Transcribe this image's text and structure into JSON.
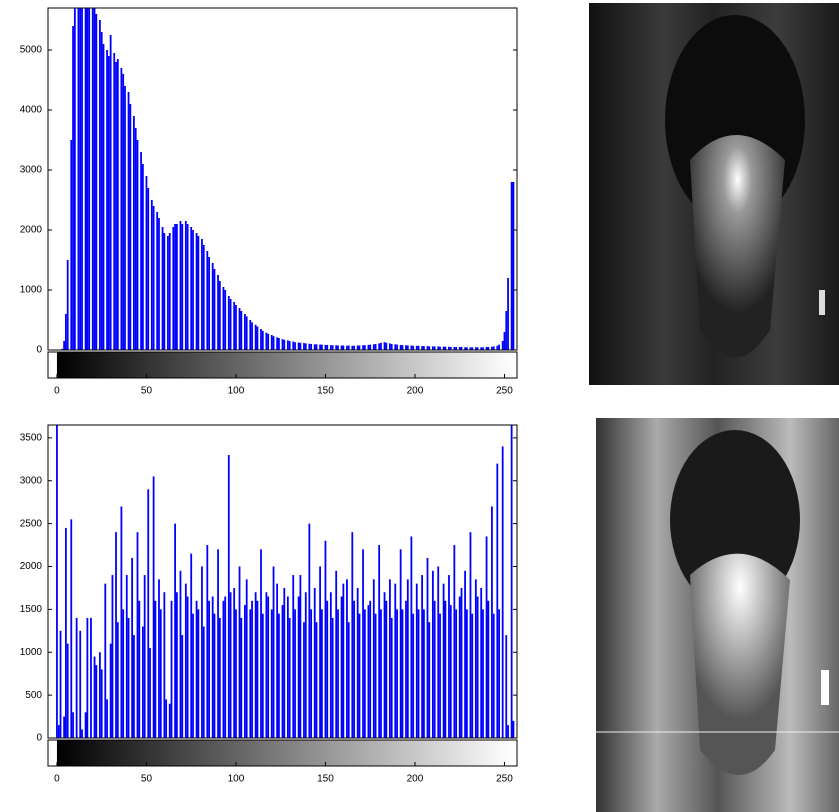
{
  "chart_data": [
    {
      "type": "histogram",
      "color": "#0000ff",
      "xlim": [
        -5,
        257
      ],
      "ylim": [
        0,
        5700
      ],
      "xticks": [
        0,
        50,
        100,
        150,
        200,
        250
      ],
      "yticks": [
        0,
        1000,
        2000,
        3000,
        4000,
        5000
      ],
      "colorbar": true,
      "x": [
        0,
        1,
        2,
        3,
        4,
        5,
        6,
        7,
        8,
        9,
        10,
        11,
        12,
        13,
        14,
        15,
        16,
        17,
        18,
        19,
        20,
        21,
        22,
        23,
        24,
        25,
        26,
        27,
        28,
        29,
        30,
        31,
        32,
        33,
        34,
        35,
        36,
        37,
        38,
        39,
        40,
        41,
        42,
        43,
        44,
        45,
        46,
        47,
        48,
        49,
        50,
        51,
        52,
        53,
        54,
        55,
        56,
        57,
        58,
        59,
        60,
        61,
        62,
        63,
        64,
        65,
        66,
        67,
        68,
        69,
        70,
        71,
        72,
        73,
        74,
        75,
        76,
        77,
        78,
        79,
        80,
        81,
        82,
        83,
        84,
        85,
        86,
        87,
        88,
        89,
        90,
        91,
        92,
        93,
        94,
        95,
        96,
        97,
        98,
        99,
        100,
        101,
        102,
        103,
        104,
        105,
        106,
        107,
        108,
        109,
        110,
        111,
        112,
        113,
        114,
        115,
        116,
        117,
        118,
        119,
        120,
        121,
        122,
        123,
        124,
        125,
        126,
        127,
        128,
        129,
        130,
        131,
        132,
        133,
        134,
        135,
        136,
        137,
        138,
        139,
        140,
        141,
        142,
        143,
        144,
        145,
        146,
        147,
        148,
        149,
        150,
        151,
        152,
        153,
        154,
        155,
        156,
        157,
        158,
        159,
        160,
        161,
        162,
        163,
        164,
        165,
        166,
        167,
        168,
        169,
        170,
        171,
        172,
        173,
        174,
        175,
        176,
        177,
        178,
        179,
        180,
        181,
        182,
        183,
        184,
        185,
        186,
        187,
        188,
        189,
        190,
        191,
        192,
        193,
        194,
        195,
        196,
        197,
        198,
        199,
        200,
        201,
        202,
        203,
        204,
        205,
        206,
        207,
        208,
        209,
        210,
        211,
        212,
        213,
        214,
        215,
        216,
        217,
        218,
        219,
        220,
        221,
        222,
        223,
        224,
        225,
        226,
        227,
        228,
        229,
        230,
        231,
        232,
        233,
        234,
        235,
        236,
        237,
        238,
        239,
        240,
        241,
        242,
        243,
        244,
        245,
        246,
        247,
        248,
        249,
        250,
        251,
        252,
        253,
        254,
        255
      ],
      "values": [
        0,
        0,
        0,
        20,
        150,
        600,
        1500,
        0,
        3500,
        5400,
        5700,
        0,
        5700,
        5700,
        5700,
        0,
        5700,
        5700,
        5700,
        0,
        5700,
        5700,
        5600,
        0,
        5500,
        5300,
        5100,
        0,
        5000,
        4900,
        5250,
        0,
        4950,
        4800,
        4850,
        0,
        4700,
        4600,
        4400,
        0,
        4300,
        4100,
        0,
        3900,
        3700,
        3500,
        0,
        3300,
        3100,
        0,
        2900,
        2700,
        0,
        2500,
        2400,
        0,
        2300,
        2200,
        0,
        2050,
        1950,
        0,
        1900,
        1950,
        0,
        2050,
        2100,
        2100,
        0,
        2150,
        2100,
        0,
        2150,
        2100,
        0,
        2050,
        2000,
        0,
        1950,
        1900,
        0,
        1850,
        1750,
        0,
        1650,
        1550,
        0,
        1450,
        1350,
        0,
        1250,
        1150,
        0,
        1050,
        1000,
        0,
        900,
        850,
        0,
        800,
        750,
        0,
        700,
        650,
        0,
        600,
        560,
        0,
        500,
        460,
        0,
        420,
        390,
        0,
        350,
        320,
        0,
        290,
        270,
        0,
        250,
        230,
        0,
        210,
        200,
        0,
        180,
        170,
        0,
        160,
        150,
        0,
        140,
        130,
        0,
        125,
        120,
        0,
        115,
        110,
        0,
        105,
        100,
        0,
        95,
        95,
        0,
        90,
        90,
        0,
        85,
        85,
        0,
        80,
        80,
        0,
        80,
        75,
        0,
        75,
        75,
        0,
        70,
        75,
        0,
        70,
        70,
        0,
        75,
        75,
        0,
        80,
        80,
        0,
        85,
        90,
        0,
        95,
        100,
        0,
        110,
        120,
        0,
        130,
        120,
        0,
        110,
        100,
        0,
        95,
        90,
        0,
        85,
        80,
        0,
        80,
        75,
        0,
        75,
        70,
        0,
        70,
        70,
        0,
        65,
        65,
        0,
        65,
        60,
        0,
        60,
        60,
        0,
        60,
        55,
        0,
        55,
        55,
        0,
        55,
        50,
        0,
        50,
        50,
        0,
        50,
        50,
        0,
        45,
        45,
        0,
        45,
        45,
        0,
        45,
        45,
        0,
        45,
        45,
        0,
        50,
        50,
        0,
        55,
        60,
        0,
        70,
        90,
        0,
        150,
        300,
        650,
        1200,
        0,
        2800,
        2800
      ]
    },
    {
      "type": "histogram",
      "color": "#0000ff",
      "xlim": [
        -5,
        257
      ],
      "ylim": [
        0,
        3650
      ],
      "xticks": [
        0,
        50,
        100,
        150,
        200,
        250
      ],
      "yticks": [
        0,
        500,
        1000,
        1500,
        2000,
        2500,
        3000,
        3500
      ],
      "colorbar": true,
      "x": [
        0,
        1,
        2,
        3,
        4,
        5,
        6,
        7,
        8,
        9,
        10,
        11,
        12,
        13,
        14,
        15,
        16,
        17,
        18,
        19,
        20,
        21,
        22,
        23,
        24,
        25,
        26,
        27,
        28,
        29,
        30,
        31,
        32,
        33,
        34,
        35,
        36,
        37,
        38,
        39,
        40,
        41,
        42,
        43,
        44,
        45,
        46,
        47,
        48,
        49,
        50,
        51,
        52,
        53,
        54,
        55,
        56,
        57,
        58,
        59,
        60,
        61,
        62,
        63,
        64,
        65,
        66,
        67,
        68,
        69,
        70,
        71,
        72,
        73,
        74,
        75,
        76,
        77,
        78,
        79,
        80,
        81,
        82,
        83,
        84,
        85,
        86,
        87,
        88,
        89,
        90,
        91,
        92,
        93,
        94,
        95,
        96,
        97,
        98,
        99,
        100,
        101,
        102,
        103,
        104,
        105,
        106,
        107,
        108,
        109,
        110,
        111,
        112,
        113,
        114,
        115,
        116,
        117,
        118,
        119,
        120,
        121,
        122,
        123,
        124,
        125,
        126,
        127,
        128,
        129,
        130,
        131,
        132,
        133,
        134,
        135,
        136,
        137,
        138,
        139,
        140,
        141,
        142,
        143,
        144,
        145,
        146,
        147,
        148,
        149,
        150,
        151,
        152,
        153,
        154,
        155,
        156,
        157,
        158,
        159,
        160,
        161,
        162,
        163,
        164,
        165,
        166,
        167,
        168,
        169,
        170,
        171,
        172,
        173,
        174,
        175,
        176,
        177,
        178,
        179,
        180,
        181,
        182,
        183,
        184,
        185,
        186,
        187,
        188,
        189,
        190,
        191,
        192,
        193,
        194,
        195,
        196,
        197,
        198,
        199,
        200,
        201,
        202,
        203,
        204,
        205,
        206,
        207,
        208,
        209,
        210,
        211,
        212,
        213,
        214,
        215,
        216,
        217,
        218,
        219,
        220,
        221,
        222,
        223,
        224,
        225,
        226,
        227,
        228,
        229,
        230,
        231,
        232,
        233,
        234,
        235,
        236,
        237,
        238,
        239,
        240,
        241,
        242,
        243,
        244,
        245,
        246,
        247,
        248,
        249,
        250,
        251,
        252,
        253,
        254,
        255
      ],
      "values": [
        3650,
        150,
        1250,
        0,
        250,
        2450,
        1100,
        0,
        2550,
        300,
        0,
        1400,
        0,
        1250,
        100,
        0,
        300,
        1400,
        0,
        1400,
        0,
        950,
        850,
        0,
        1000,
        800,
        0,
        1800,
        450,
        0,
        1100,
        1900,
        0,
        2400,
        1350,
        0,
        2700,
        1500,
        0,
        1900,
        1400,
        0,
        2100,
        1200,
        0,
        2400,
        1600,
        0,
        1300,
        1900,
        0,
        2900,
        1050,
        0,
        3050,
        1600,
        0,
        1850,
        1500,
        0,
        1700,
        450,
        0,
        400,
        1600,
        0,
        2500,
        1700,
        0,
        1950,
        1200,
        0,
        1800,
        1650,
        0,
        2150,
        1450,
        0,
        1600,
        1500,
        0,
        2000,
        1300,
        0,
        2250,
        1600,
        0,
        1650,
        1450,
        0,
        2200,
        1400,
        0,
        1600,
        1650,
        0,
        3300,
        1700,
        0,
        1750,
        1500,
        0,
        2000,
        1400,
        0,
        1550,
        1850,
        0,
        1500,
        1600,
        0,
        1700,
        1600,
        0,
        2200,
        1450,
        0,
        1700,
        1650,
        0,
        1500,
        2000,
        0,
        1800,
        1450,
        0,
        1550,
        1750,
        0,
        1650,
        1400,
        0,
        1900,
        1500,
        0,
        1650,
        1900,
        0,
        1350,
        1700,
        0,
        2500,
        1500,
        0,
        1750,
        1350,
        0,
        2000,
        1500,
        0,
        2300,
        1600,
        0,
        1700,
        1400,
        0,
        1950,
        1500,
        0,
        1650,
        1800,
        0,
        1850,
        1350,
        0,
        2400,
        1600,
        0,
        1750,
        1450,
        0,
        2200,
        1500,
        0,
        1550,
        1600,
        0,
        1850,
        1450,
        0,
        2250,
        1500,
        0,
        1700,
        1600,
        0,
        1850,
        1400,
        0,
        1800,
        1500,
        0,
        2200,
        1500,
        0,
        1600,
        1850,
        0,
        2350,
        1450,
        0,
        1800,
        1500,
        0,
        1900,
        1500,
        0,
        2100,
        1350,
        0,
        1950,
        1600,
        0,
        2000,
        1450,
        0,
        1800,
        1600,
        0,
        1900,
        1550,
        0,
        2250,
        1500,
        0,
        1650,
        1750,
        0,
        1950,
        1500,
        0,
        2400,
        1450,
        0,
        1850,
        1650,
        0,
        1750,
        1500,
        0,
        2350,
        1600,
        0,
        2700,
        1450,
        0,
        3200,
        1500,
        0,
        3400,
        0,
        1200,
        150,
        0,
        3650,
        200
      ]
    }
  ]
}
